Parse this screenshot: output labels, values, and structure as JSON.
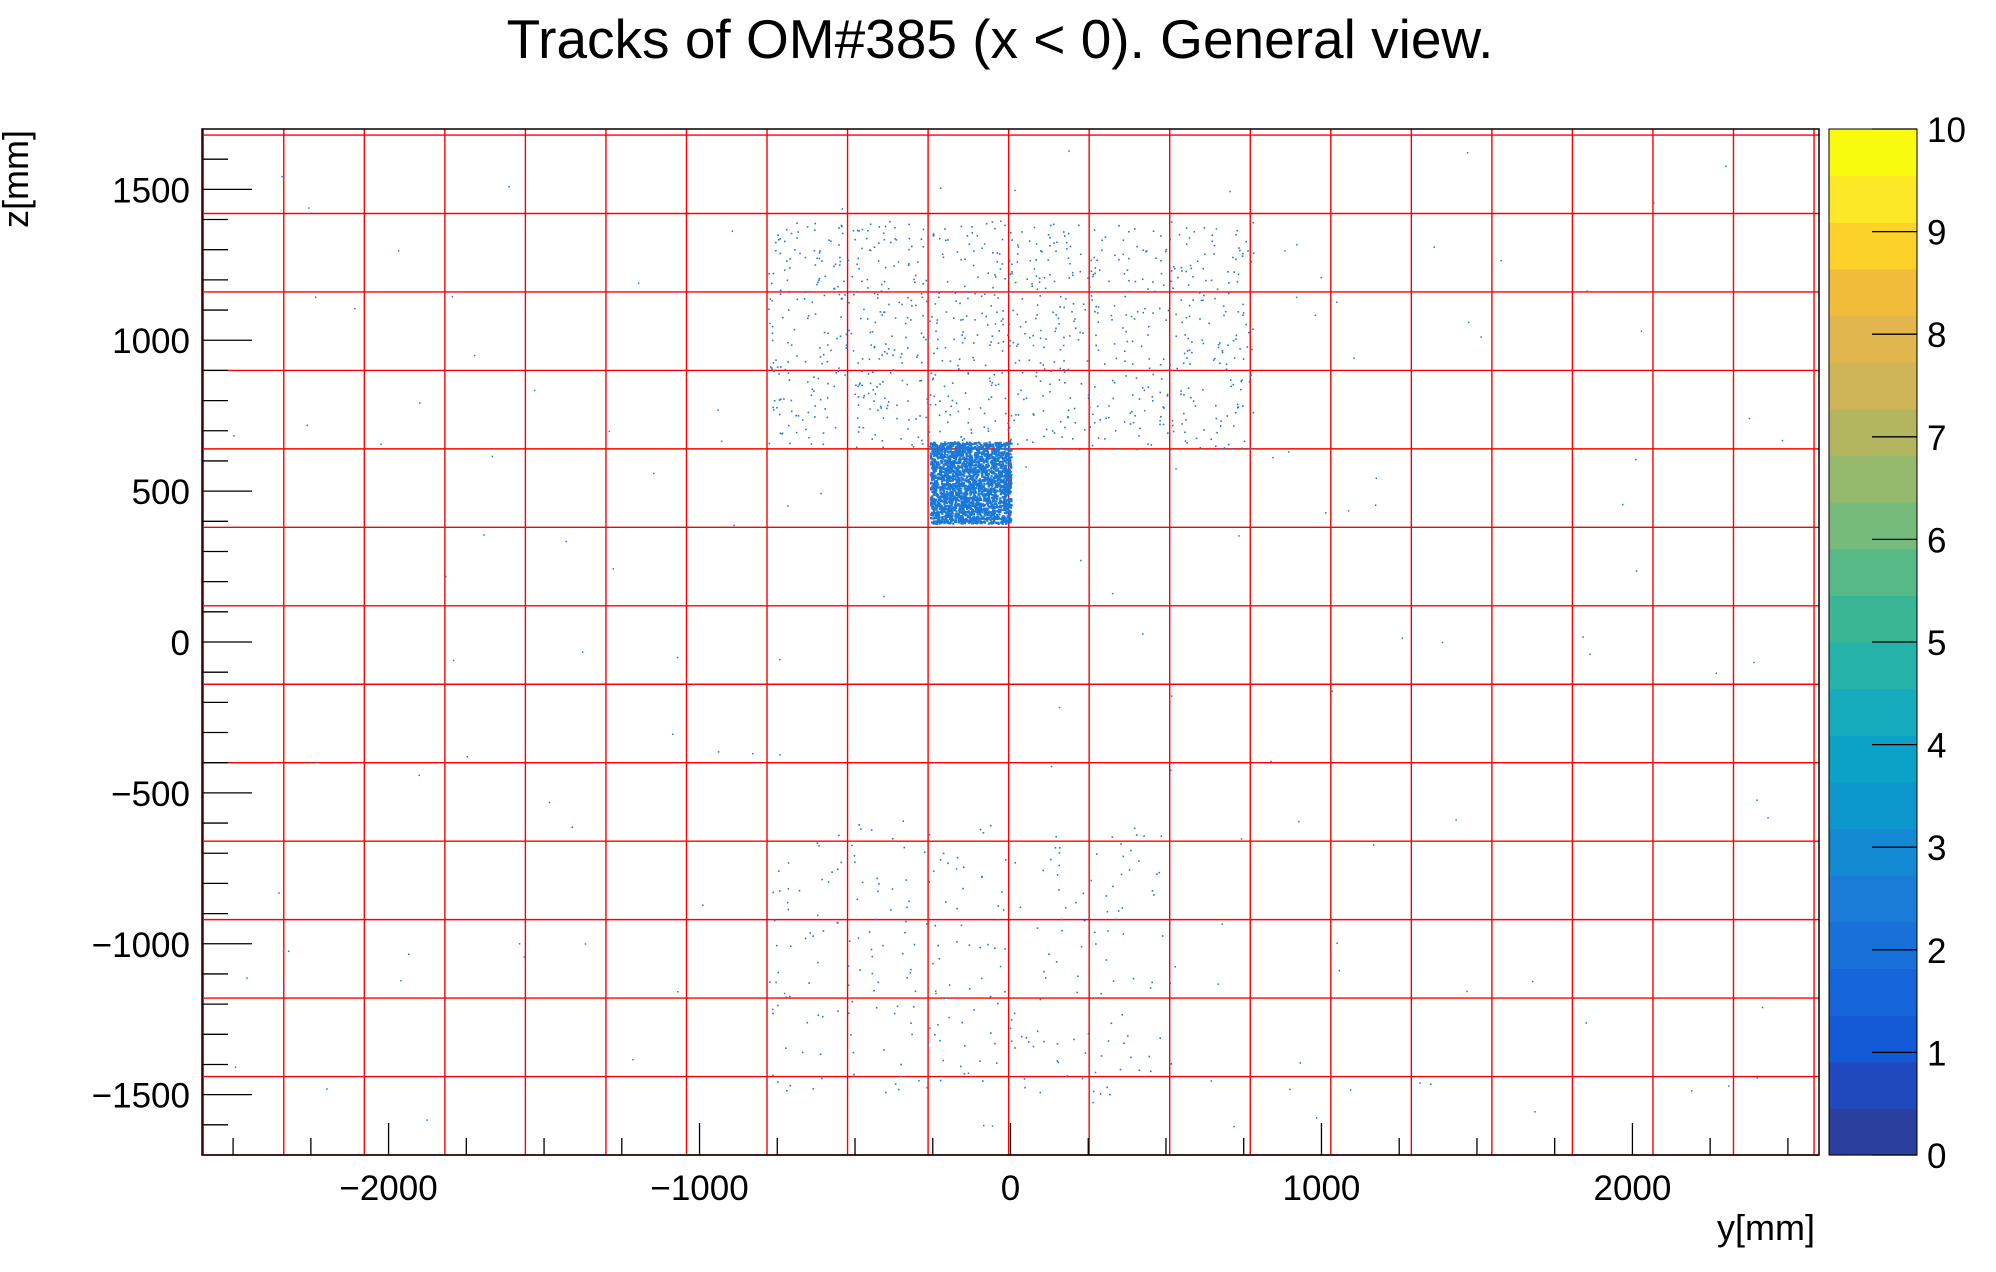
{
  "chart_data": {
    "type": "heatmap",
    "title": "Tracks of OM#385 (x < 0). General view.",
    "xlabel": "y[mm]",
    "ylabel": "z[mm]",
    "xlim": [
      -2600,
      2600
    ],
    "ylim": [
      -1700,
      1700
    ],
    "x_ticks": [
      -2000,
      -1000,
      0,
      1000,
      2000
    ],
    "x_tick_labels": [
      "−2000",
      "−1000",
      "0",
      "1000",
      "2000"
    ],
    "y_ticks": [
      -1500,
      -1000,
      -500,
      0,
      500,
      1000,
      1500
    ],
    "y_tick_labels": [
      "−1500",
      "−1000",
      "−500",
      "0",
      "500",
      "1000",
      "1500"
    ],
    "grid": "on",
    "grid_color": "#ff0000",
    "om_grid": {
      "y_edges": [
        -2596,
        -2337,
        -2078,
        -1819,
        -1560,
        -1301,
        -1042,
        -783,
        -524,
        -265,
        -6,
        253,
        512,
        771,
        1030,
        1289,
        1548,
        1807,
        2066,
        2325,
        2584
      ],
      "z_edges": [
        -1700,
        -1440,
        -1180,
        -920,
        -660,
        -400,
        -140,
        120,
        380,
        640,
        900,
        1160,
        1420,
        1680
      ]
    },
    "dense_cluster": {
      "y_range": [
        -260,
        0
      ],
      "z_range": [
        395,
        665
      ],
      "counts_per_bin": "1-2"
    },
    "scatter_halo": {
      "y_range": [
        -780,
        780
      ],
      "z_range": [
        640,
        1400
      ],
      "counts_per_bin": "1"
    },
    "lower_halo": {
      "y_range": [
        -780,
        520
      ],
      "z_range": [
        -1500,
        -580
      ],
      "counts_per_bin": "1"
    },
    "colorbar": {
      "min": 0,
      "max": 10,
      "tick_labels": [
        "0",
        "1",
        "2",
        "3",
        "4",
        "5",
        "6",
        "7",
        "8",
        "9",
        "10"
      ],
      "colors": [
        "#2a3f9e",
        "#1f49bd",
        "#145ad6",
        "#1565d8",
        "#1870d8",
        "#1a7cd6",
        "#1389d3",
        "#0c97cd",
        "#0ba2c8",
        "#16abbd",
        "#25b2a8",
        "#3ab695",
        "#56b987",
        "#76ba7c",
        "#94b96c",
        "#b3b65e",
        "#d0b458",
        "#e1b64f",
        "#f1bc3a",
        "#fbd12a",
        "#fde828",
        "#f9fb0e"
      ]
    },
    "point_color": "#1a78d8"
  }
}
